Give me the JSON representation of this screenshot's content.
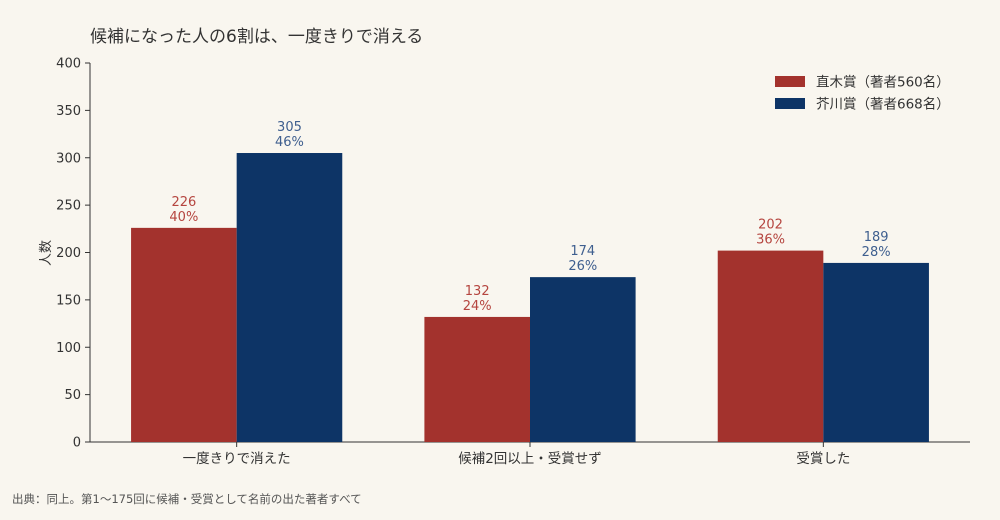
{
  "chart_data": {
    "type": "bar",
    "title": "候補になった人の6割は、一度きりで消える",
    "xlabel": "",
    "ylabel": "人数",
    "ylim": [
      0,
      400
    ],
    "yticks": [
      0,
      50,
      100,
      150,
      200,
      250,
      300,
      350,
      400
    ],
    "categories": [
      "一度きりで消えた",
      "候補2回以上・受賞せず",
      "受賞した"
    ],
    "series": [
      {
        "name": "直木賞（著者560名）",
        "color": "#a3322d",
        "label_color": "#b5453f",
        "values": [
          226,
          132,
          202
        ],
        "percents": [
          "40%",
          "24%",
          "36%"
        ]
      },
      {
        "name": "芥川賞（著者668名）",
        "color": "#0d3466",
        "label_color": "#3f5f8f",
        "values": [
          305,
          174,
          189
        ],
        "percents": [
          "46%",
          "26%",
          "28%"
        ]
      }
    ],
    "grid": false,
    "legend_position": "top-right",
    "source": "出典：同上。第1〜175回に候補・受賞として名前の出た著者すべて"
  }
}
